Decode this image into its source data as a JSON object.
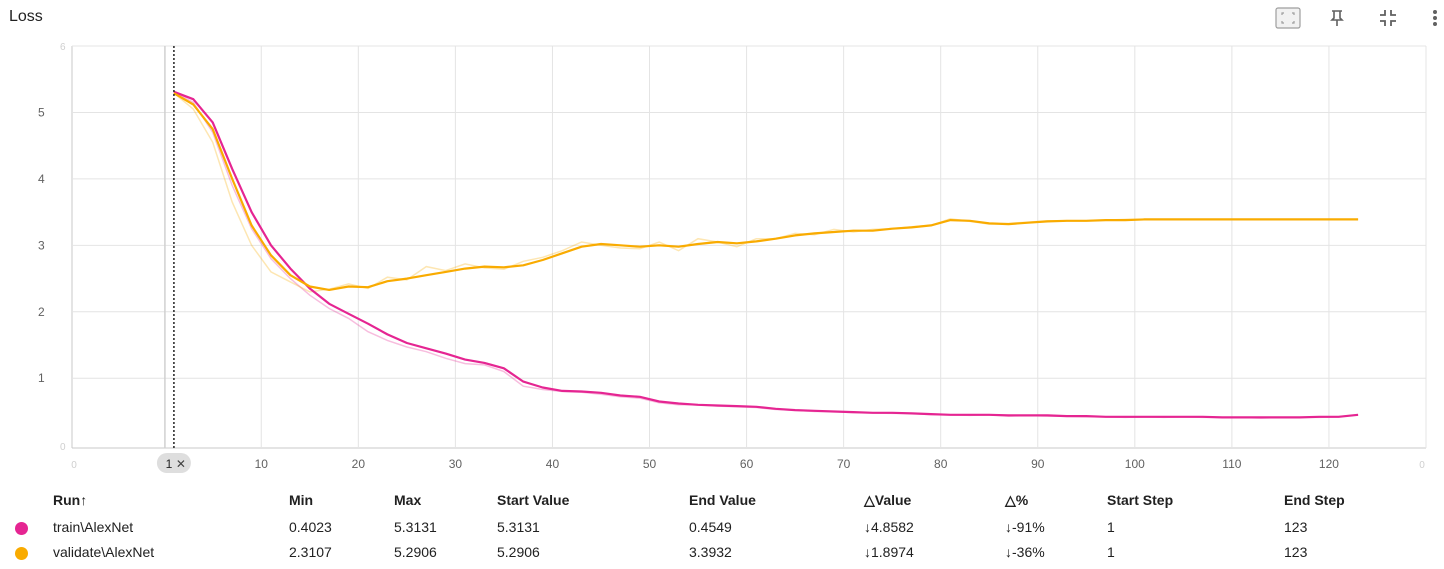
{
  "card": {
    "title": "Loss",
    "toolbar": {
      "fit_icon": "fit-to-domain-icon",
      "pin_icon": "pin-icon",
      "collapse_icon": "collapse-icon",
      "more_icon": "more-vert-icon"
    }
  },
  "chart_data": {
    "type": "line",
    "title": "Loss",
    "xlabel": "",
    "ylabel": "",
    "xlim": [
      -9.5,
      130
    ],
    "ylim": [
      -0.05,
      6.0
    ],
    "xticks": [
      10,
      20,
      30,
      40,
      50,
      60,
      70,
      80,
      90,
      100,
      110,
      120
    ],
    "yticks": [
      1,
      2,
      3,
      4,
      5
    ],
    "faint_edge_ticks": {
      "x_left": "0",
      "x_right": "0",
      "y_top": "6",
      "y_bottom": "0"
    },
    "grid": true,
    "cursor": {
      "step": 1,
      "label": "1",
      "close_icon": "close-icon"
    },
    "series": [
      {
        "name": "train\\AlexNet",
        "color": "#e52592",
        "smoothed": [
          [
            1,
            5.31
          ],
          [
            3,
            5.2
          ],
          [
            5,
            4.85
          ],
          [
            7,
            4.15
          ],
          [
            9,
            3.5
          ],
          [
            11,
            3.0
          ],
          [
            13,
            2.65
          ],
          [
            15,
            2.35
          ],
          [
            17,
            2.12
          ],
          [
            19,
            1.97
          ],
          [
            21,
            1.82
          ],
          [
            23,
            1.66
          ],
          [
            25,
            1.53
          ],
          [
            27,
            1.45
          ],
          [
            29,
            1.37
          ],
          [
            31,
            1.28
          ],
          [
            33,
            1.23
          ],
          [
            35,
            1.15
          ],
          [
            37,
            0.95
          ],
          [
            39,
            0.86
          ],
          [
            41,
            0.81
          ],
          [
            43,
            0.8
          ],
          [
            45,
            0.78
          ],
          [
            47,
            0.74
          ],
          [
            49,
            0.72
          ],
          [
            51,
            0.65
          ],
          [
            53,
            0.62
          ],
          [
            55,
            0.6
          ],
          [
            57,
            0.59
          ],
          [
            59,
            0.58
          ],
          [
            61,
            0.57
          ],
          [
            63,
            0.54
          ],
          [
            65,
            0.52
          ],
          [
            67,
            0.51
          ],
          [
            69,
            0.5
          ],
          [
            71,
            0.49
          ],
          [
            73,
            0.48
          ],
          [
            75,
            0.48
          ],
          [
            77,
            0.47
          ],
          [
            79,
            0.46
          ],
          [
            81,
            0.45
          ],
          [
            83,
            0.45
          ],
          [
            85,
            0.45
          ],
          [
            87,
            0.44
          ],
          [
            89,
            0.44
          ],
          [
            91,
            0.44
          ],
          [
            93,
            0.43
          ],
          [
            95,
            0.43
          ],
          [
            97,
            0.42
          ],
          [
            99,
            0.42
          ],
          [
            101,
            0.42
          ],
          [
            103,
            0.42
          ],
          [
            105,
            0.42
          ],
          [
            107,
            0.42
          ],
          [
            109,
            0.41
          ],
          [
            111,
            0.41
          ],
          [
            113,
            0.41
          ],
          [
            115,
            0.41
          ],
          [
            117,
            0.41
          ],
          [
            119,
            0.42
          ],
          [
            121,
            0.42
          ],
          [
            123,
            0.45
          ]
        ],
        "raw": [
          [
            1,
            5.31
          ],
          [
            3,
            5.15
          ],
          [
            5,
            4.7
          ],
          [
            7,
            3.9
          ],
          [
            9,
            3.25
          ],
          [
            11,
            2.8
          ],
          [
            13,
            2.5
          ],
          [
            15,
            2.25
          ],
          [
            17,
            2.05
          ],
          [
            19,
            1.9
          ],
          [
            21,
            1.7
          ],
          [
            23,
            1.57
          ],
          [
            25,
            1.47
          ],
          [
            27,
            1.4
          ],
          [
            29,
            1.3
          ],
          [
            31,
            1.22
          ],
          [
            33,
            1.2
          ],
          [
            35,
            1.1
          ],
          [
            37,
            0.88
          ],
          [
            39,
            0.83
          ],
          [
            41,
            0.8
          ],
          [
            43,
            0.79
          ],
          [
            45,
            0.76
          ],
          [
            47,
            0.72
          ],
          [
            49,
            0.7
          ],
          [
            51,
            0.63
          ],
          [
            53,
            0.6
          ],
          [
            55,
            0.6
          ],
          [
            57,
            0.58
          ],
          [
            59,
            0.57
          ],
          [
            61,
            0.56
          ],
          [
            63,
            0.53
          ],
          [
            65,
            0.52
          ],
          [
            67,
            0.5
          ],
          [
            69,
            0.5
          ],
          [
            71,
            0.48
          ],
          [
            73,
            0.48
          ],
          [
            75,
            0.47
          ],
          [
            77,
            0.47
          ],
          [
            79,
            0.45
          ],
          [
            81,
            0.45
          ],
          [
            83,
            0.44
          ],
          [
            85,
            0.45
          ],
          [
            87,
            0.43
          ],
          [
            89,
            0.44
          ],
          [
            91,
            0.43
          ],
          [
            93,
            0.43
          ],
          [
            95,
            0.42
          ],
          [
            97,
            0.42
          ],
          [
            99,
            0.41
          ],
          [
            101,
            0.42
          ],
          [
            103,
            0.41
          ],
          [
            105,
            0.42
          ],
          [
            107,
            0.41
          ],
          [
            109,
            0.41
          ],
          [
            111,
            0.41
          ],
          [
            113,
            0.4
          ],
          [
            115,
            0.41
          ],
          [
            117,
            0.41
          ],
          [
            119,
            0.41
          ],
          [
            121,
            0.42
          ],
          [
            123,
            0.45
          ]
        ]
      },
      {
        "name": "validate\\AlexNet",
        "color": "#f9ab00",
        "smoothed": [
          [
            1,
            5.29
          ],
          [
            3,
            5.12
          ],
          [
            5,
            4.75
          ],
          [
            7,
            4.0
          ],
          [
            9,
            3.3
          ],
          [
            11,
            2.85
          ],
          [
            13,
            2.55
          ],
          [
            15,
            2.38
          ],
          [
            17,
            2.33
          ],
          [
            19,
            2.38
          ],
          [
            21,
            2.37
          ],
          [
            23,
            2.46
          ],
          [
            25,
            2.5
          ],
          [
            27,
            2.55
          ],
          [
            29,
            2.6
          ],
          [
            31,
            2.65
          ],
          [
            33,
            2.68
          ],
          [
            35,
            2.67
          ],
          [
            37,
            2.7
          ],
          [
            39,
            2.78
          ],
          [
            41,
            2.88
          ],
          [
            43,
            2.98
          ],
          [
            45,
            3.02
          ],
          [
            47,
            3.0
          ],
          [
            49,
            2.98
          ],
          [
            51,
            3.0
          ],
          [
            53,
            2.98
          ],
          [
            55,
            3.02
          ],
          [
            57,
            3.05
          ],
          [
            59,
            3.03
          ],
          [
            61,
            3.06
          ],
          [
            63,
            3.1
          ],
          [
            65,
            3.15
          ],
          [
            67,
            3.18
          ],
          [
            69,
            3.2
          ],
          [
            71,
            3.22
          ],
          [
            73,
            3.22
          ],
          [
            75,
            3.25
          ],
          [
            77,
            3.27
          ],
          [
            79,
            3.3
          ],
          [
            81,
            3.38
          ],
          [
            83,
            3.37
          ],
          [
            85,
            3.33
          ],
          [
            87,
            3.32
          ],
          [
            89,
            3.34
          ],
          [
            91,
            3.36
          ],
          [
            93,
            3.37
          ],
          [
            95,
            3.37
          ],
          [
            97,
            3.38
          ],
          [
            99,
            3.38
          ],
          [
            101,
            3.39
          ],
          [
            103,
            3.39
          ],
          [
            105,
            3.39
          ],
          [
            107,
            3.39
          ],
          [
            109,
            3.39
          ],
          [
            111,
            3.39
          ],
          [
            113,
            3.39
          ],
          [
            115,
            3.39
          ],
          [
            117,
            3.39
          ],
          [
            119,
            3.39
          ],
          [
            121,
            3.39
          ],
          [
            123,
            3.39
          ]
        ],
        "raw": [
          [
            1,
            5.29
          ],
          [
            3,
            5.05
          ],
          [
            5,
            4.55
          ],
          [
            7,
            3.65
          ],
          [
            9,
            3.0
          ],
          [
            11,
            2.6
          ],
          [
            13,
            2.45
          ],
          [
            15,
            2.3
          ],
          [
            17,
            2.34
          ],
          [
            19,
            2.42
          ],
          [
            21,
            2.35
          ],
          [
            23,
            2.52
          ],
          [
            25,
            2.48
          ],
          [
            27,
            2.68
          ],
          [
            29,
            2.62
          ],
          [
            31,
            2.72
          ],
          [
            33,
            2.66
          ],
          [
            35,
            2.64
          ],
          [
            37,
            2.76
          ],
          [
            39,
            2.82
          ],
          [
            41,
            2.92
          ],
          [
            43,
            3.05
          ],
          [
            45,
            3.0
          ],
          [
            47,
            2.96
          ],
          [
            49,
            2.95
          ],
          [
            51,
            3.05
          ],
          [
            53,
            2.92
          ],
          [
            55,
            3.1
          ],
          [
            57,
            3.05
          ],
          [
            59,
            2.98
          ],
          [
            61,
            3.1
          ],
          [
            63,
            3.1
          ],
          [
            65,
            3.18
          ],
          [
            67,
            3.16
          ],
          [
            69,
            3.24
          ],
          [
            71,
            3.2
          ],
          [
            73,
            3.24
          ],
          [
            75,
            3.25
          ],
          [
            77,
            3.28
          ],
          [
            79,
            3.3
          ],
          [
            81,
            3.4
          ],
          [
            83,
            3.36
          ],
          [
            85,
            3.32
          ],
          [
            87,
            3.33
          ],
          [
            89,
            3.35
          ],
          [
            91,
            3.37
          ],
          [
            93,
            3.37
          ],
          [
            95,
            3.37
          ],
          [
            97,
            3.38
          ],
          [
            99,
            3.39
          ],
          [
            101,
            3.39
          ],
          [
            103,
            3.39
          ],
          [
            105,
            3.39
          ],
          [
            107,
            3.39
          ],
          [
            109,
            3.39
          ],
          [
            111,
            3.39
          ],
          [
            113,
            3.39
          ],
          [
            115,
            3.39
          ],
          [
            117,
            3.39
          ],
          [
            119,
            3.39
          ],
          [
            121,
            3.39
          ],
          [
            123,
            3.39
          ]
        ]
      }
    ]
  },
  "table": {
    "headers": {
      "run": "Run",
      "run_sort_icon": "↑",
      "min": "Min",
      "max": "Max",
      "start_value": "Start Value",
      "end_value": "End Value",
      "delta_value": "△Value",
      "delta_percent": "△%",
      "start_step": "Start Step",
      "end_step": "End Step"
    },
    "rows": [
      {
        "color": "#e52592",
        "run": "train\\AlexNet",
        "min": "0.4023",
        "max": "5.3131",
        "start_value": "5.3131",
        "end_value": "0.4549",
        "delta_value": "↓4.8582",
        "delta_percent": "↓-91%",
        "start_step": "1",
        "end_step": "123"
      },
      {
        "color": "#f9ab00",
        "run": "validate\\AlexNet",
        "min": "2.3107",
        "max": "5.2906",
        "start_value": "5.2906",
        "end_value": "3.3932",
        "delta_value": "↓1.8974",
        "delta_percent": "↓-36%",
        "start_step": "1",
        "end_step": "123"
      }
    ]
  }
}
